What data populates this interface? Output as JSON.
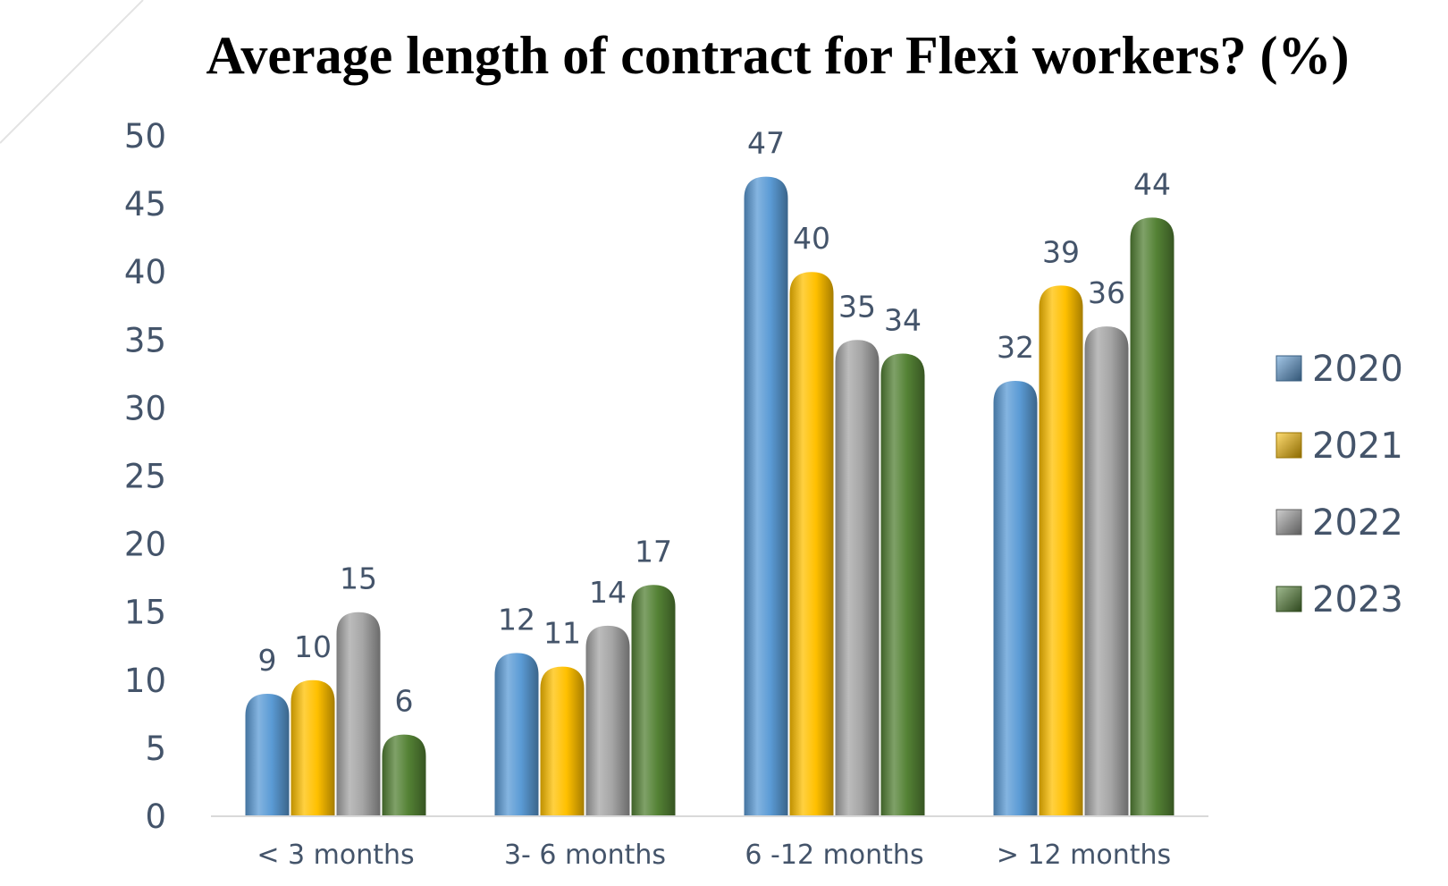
{
  "chart_data": {
    "type": "bar",
    "title": "Average length of  contract for Flexi workers? (%)",
    "xlabel": "",
    "ylabel": "",
    "categories": [
      "< 3 months",
      "3- 6 months",
      "6 -12 months",
      "> 12 months"
    ],
    "series": [
      {
        "name": "2020",
        "values": [
          9,
          12,
          47,
          32
        ],
        "color": "#5b9bd5"
      },
      {
        "name": "2021",
        "values": [
          10,
          11,
          40,
          39
        ],
        "color": "#ffc000"
      },
      {
        "name": "2022",
        "values": [
          15,
          14,
          35,
          36
        ],
        "color": "#a5a5a5"
      },
      {
        "name": "2023",
        "values": [
          6,
          17,
          34,
          44
        ],
        "color": "#548235"
      }
    ],
    "ylim": [
      0,
      50
    ],
    "yticks": [
      0,
      5,
      10,
      15,
      20,
      25,
      30,
      35,
      40,
      45,
      50
    ],
    "grid": false,
    "legend_position": "right",
    "bar_style": "rounded-cylinder"
  }
}
